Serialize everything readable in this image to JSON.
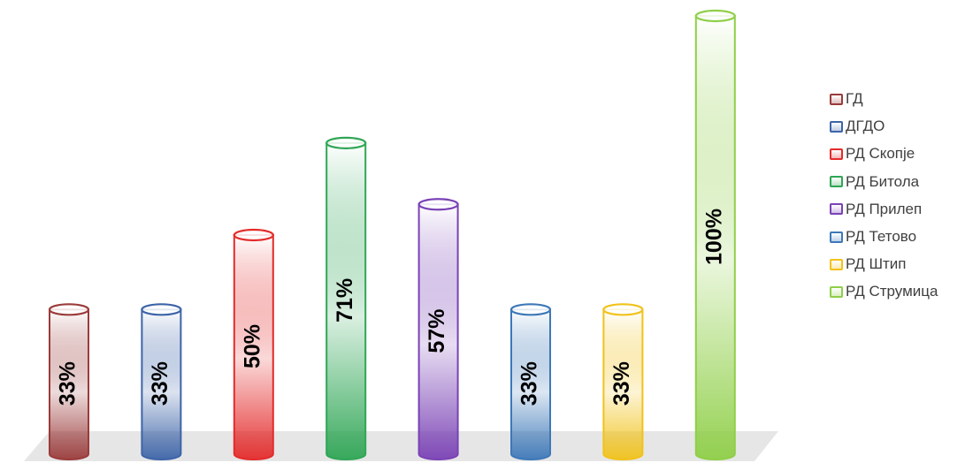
{
  "chart_data": {
    "type": "bar",
    "title": "",
    "xlabel": "",
    "ylabel": "",
    "ylim": [
      0,
      100
    ],
    "legend_position": "right",
    "series": [
      {
        "name": "ГД",
        "value": 33,
        "label": "33%",
        "color": "#9b3b3b"
      },
      {
        "name": "ДГДО",
        "value": 33,
        "label": "33%",
        "color": "#3d64a8"
      },
      {
        "name": "РД Скопје",
        "value": 50,
        "label": "50%",
        "color": "#e42b2b"
      },
      {
        "name": "РД Битола",
        "value": 71,
        "label": "71%",
        "color": "#2fa655"
      },
      {
        "name": "РД Прилеп",
        "value": 57,
        "label": "57%",
        "color": "#7a42b5"
      },
      {
        "name": "РД Тетово",
        "value": 33,
        "label": "33%",
        "color": "#3d78b8"
      },
      {
        "name": "РД Штип",
        "value": 33,
        "label": "33%",
        "color": "#f1c21a"
      },
      {
        "name": "РД Струмица",
        "value": 100,
        "label": "100%",
        "color": "#8fcf48"
      }
    ]
  }
}
